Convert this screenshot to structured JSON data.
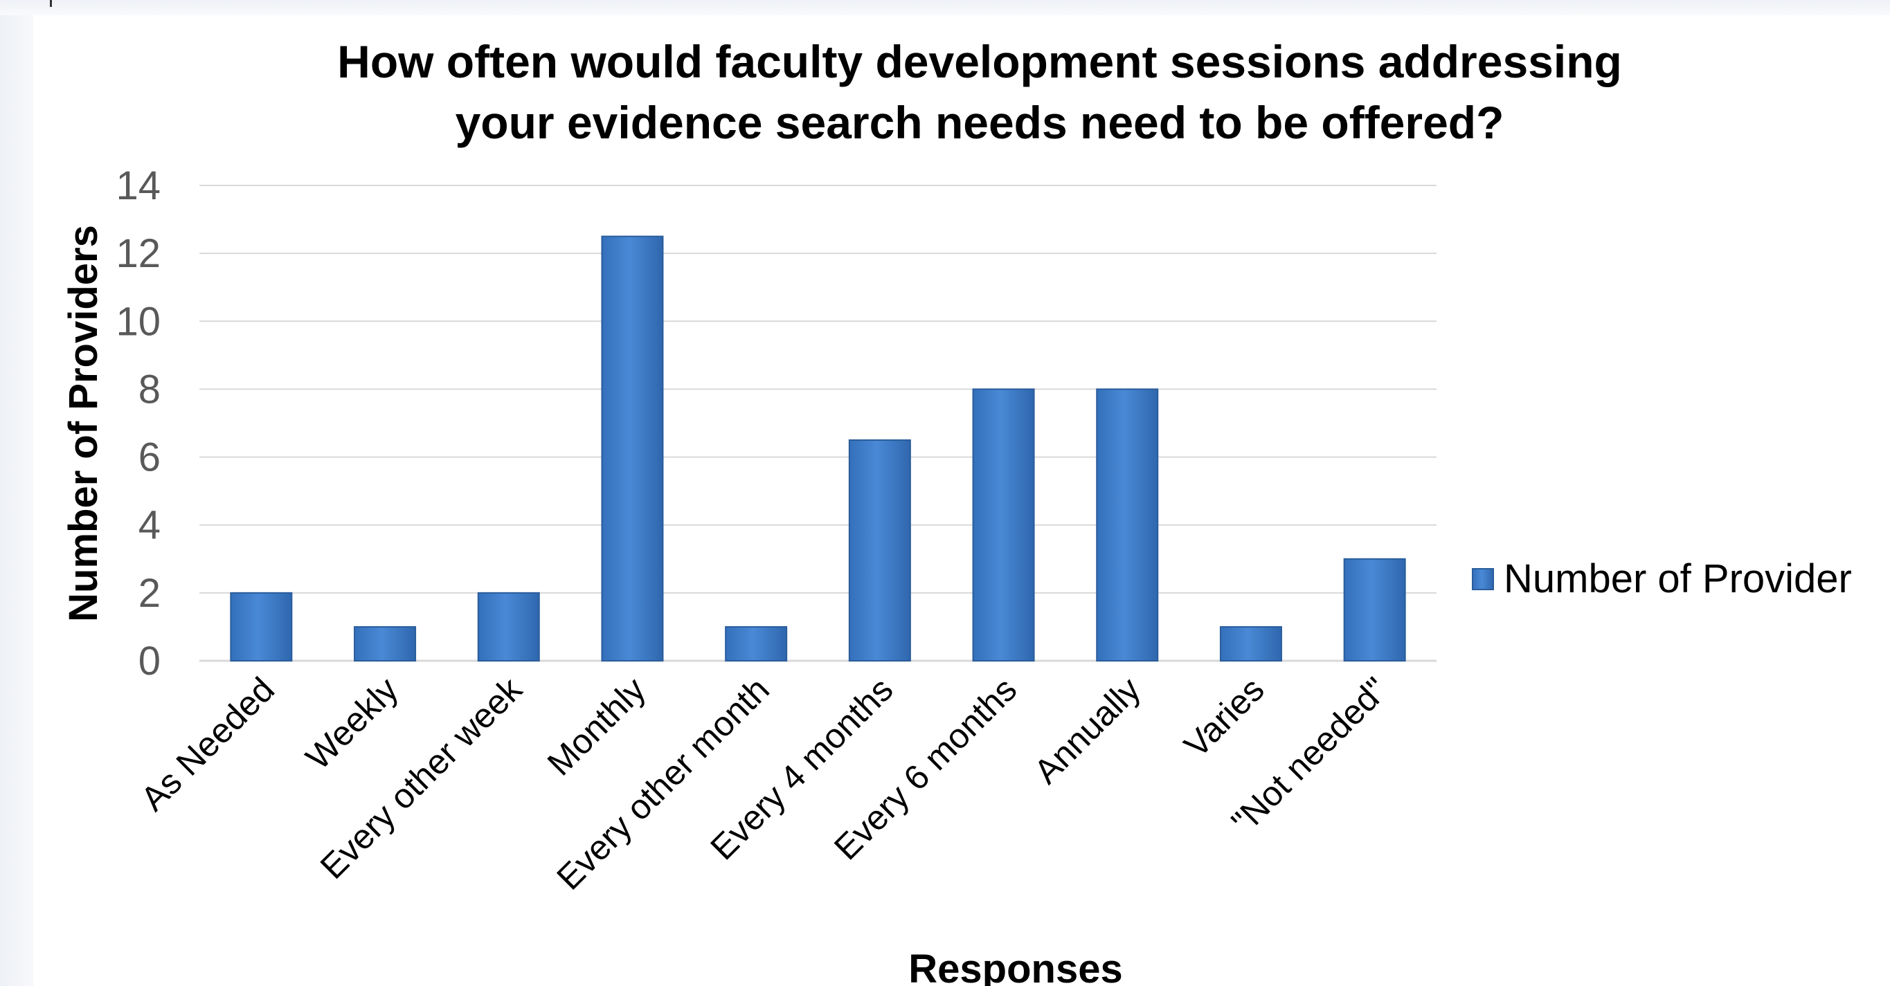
{
  "chart_data": {
    "type": "bar",
    "title_lines": [
      "How often would faculty development sessions addressing",
      "your evidence search needs need to be offered?"
    ],
    "xlabel": "Responses",
    "ylabel": "Number of Providers",
    "categories": [
      "As Needed",
      "Weekly",
      "Every other week",
      "Monthly",
      "Every other month",
      "Every 4 months",
      "Every 6 months",
      "Annually",
      "Varies",
      "\"Not needed\""
    ],
    "series": [
      {
        "name": "Number of Provider",
        "values": [
          2,
          1,
          2,
          12.5,
          1,
          6.5,
          8,
          8,
          1,
          3
        ]
      }
    ],
    "ylim": [
      0,
      14
    ],
    "yticks": [
      "0",
      "2",
      "4",
      "6",
      "8",
      "10",
      "12",
      "14"
    ],
    "grid": true,
    "legend_position": "right",
    "bar_color": "#3d7cc9",
    "bar_edge_color": "#2a5d9c",
    "grid_color": "#d9d9d9"
  }
}
